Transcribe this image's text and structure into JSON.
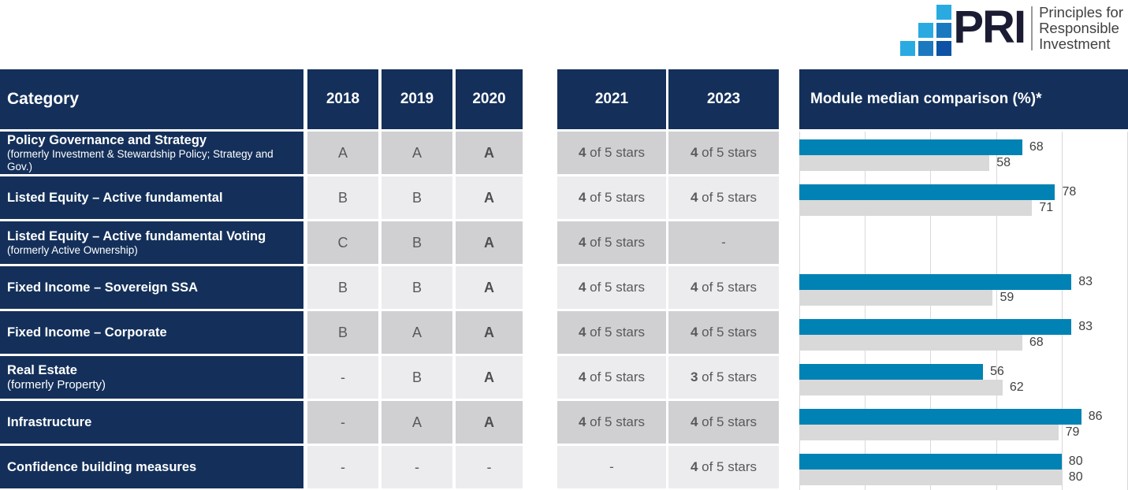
{
  "colors": {
    "navy": "#14305A",
    "bar-blue": "#0082B4",
    "bar-gray": "#D9D9D9",
    "cell-dark": "#D0D0D3",
    "cell-light": "#ECECEE",
    "grade-text": "#58595B",
    "chart-label": "#3F3F3F",
    "gridline": "#D9D9D9",
    "logo-light": "#29ABE2",
    "logo-medium": "#1B79C0",
    "logo-dark": "#0D52A5",
    "logo-text": "#1B1B33",
    "tagline-text": "#414042"
  },
  "logo": {
    "acronym": "PRI",
    "tagline_lines": [
      "Principles for",
      "Responsible",
      "Investment"
    ]
  },
  "table": {
    "header": {
      "category": "Category",
      "years": [
        "2018",
        "2019",
        "2020"
      ],
      "star_years": [
        "2021",
        "2023"
      ],
      "chart_title": "Module median comparison (%)*"
    },
    "rows": [
      {
        "name": "Policy Governance and Strategy",
        "sub": "(formerly Investment & Stewardship Policy; Strategy and Gov.)",
        "sub_inline": false,
        "grades": [
          "A",
          "A",
          "A"
        ],
        "stars": [
          {
            "num": "4",
            "text": "of 5 stars"
          },
          {
            "num": "4",
            "text": "of 5 stars"
          }
        ]
      },
      {
        "name": "Listed Equity – Active fundamental",
        "sub": "",
        "sub_inline": false,
        "grades": [
          "B",
          "B",
          "A"
        ],
        "stars": [
          {
            "num": "4",
            "text": "of 5 stars"
          },
          {
            "num": "4",
            "text": "of 5 stars"
          }
        ]
      },
      {
        "name": "Listed Equity – Active fundamental Voting",
        "sub": "(formerly Active Ownership)",
        "sub_inline": false,
        "grades": [
          "C",
          "B",
          "A"
        ],
        "stars": [
          {
            "num": "4",
            "text": "of 5 stars"
          },
          {
            "num": "-",
            "text": ""
          }
        ]
      },
      {
        "name": "Fixed Income – Sovereign SSA",
        "sub": "",
        "sub_inline": false,
        "grades": [
          "B",
          "B",
          "A"
        ],
        "stars": [
          {
            "num": "4",
            "text": "of 5 stars"
          },
          {
            "num": "4",
            "text": "of 5 stars"
          }
        ]
      },
      {
        "name": "Fixed Income – Corporate",
        "sub": "",
        "sub_inline": false,
        "grades": [
          "B",
          "A",
          "A"
        ],
        "stars": [
          {
            "num": "4",
            "text": "of 5 stars"
          },
          {
            "num": "4",
            "text": "of 5 stars"
          }
        ]
      },
      {
        "name": "Real Estate",
        "sub": "(formerly Property)",
        "sub_inline": true,
        "grades": [
          "-",
          "B",
          "A"
        ],
        "stars": [
          {
            "num": "4",
            "text": "of 5 stars"
          },
          {
            "num": "3",
            "text": "of 5 stars"
          }
        ]
      },
      {
        "name": "Infrastructure",
        "sub": "",
        "sub_inline": false,
        "grades": [
          "-",
          "A",
          "A"
        ],
        "stars": [
          {
            "num": "4",
            "text": "of 5 stars"
          },
          {
            "num": "4",
            "text": "of 5 stars"
          }
        ]
      },
      {
        "name": "Confidence building measures",
        "sub": "",
        "sub_inline": false,
        "grades": [
          "-",
          "-",
          "-"
        ],
        "stars": [
          {
            "num": "-",
            "text": ""
          },
          {
            "num": "4",
            "text": "of 5 stars"
          }
        ]
      }
    ]
  },
  "chart_data": {
    "type": "bar",
    "orientation": "horizontal",
    "title": "Module median comparison (%)*",
    "xlabel": "",
    "ylabel": "",
    "xlim": [
      0,
      100
    ],
    "gridline_step": 20,
    "grid": true,
    "legend": "none",
    "categories": [
      "Policy Governance and Strategy",
      "Listed Equity – Active fundamental",
      "Listed Equity – Active fundamental Voting",
      "Fixed Income – Sovereign SSA",
      "Fixed Income – Corporate",
      "Real Estate",
      "Infrastructure",
      "Confidence building measures"
    ],
    "series": [
      {
        "name": "blue",
        "color": "#0082B4",
        "values": [
          68,
          78,
          null,
          83,
          83,
          56,
          86,
          80
        ]
      },
      {
        "name": "gray",
        "color": "#D9D9D9",
        "values": [
          58,
          71,
          null,
          59,
          68,
          62,
          79,
          80
        ]
      }
    ]
  }
}
